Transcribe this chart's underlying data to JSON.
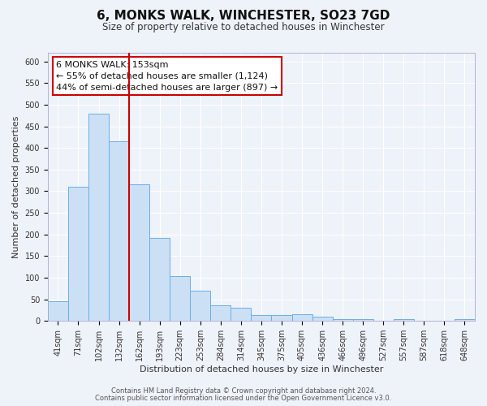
{
  "title": "6, MONKS WALK, WINCHESTER, SO23 7GD",
  "subtitle": "Size of property relative to detached houses in Winchester",
  "xlabel": "Distribution of detached houses by size in Winchester",
  "ylabel": "Number of detached properties",
  "bar_labels": [
    "41sqm",
    "71sqm",
    "102sqm",
    "132sqm",
    "162sqm",
    "193sqm",
    "223sqm",
    "253sqm",
    "284sqm",
    "314sqm",
    "345sqm",
    "375sqm",
    "405sqm",
    "436sqm",
    "466sqm",
    "496sqm",
    "527sqm",
    "557sqm",
    "587sqm",
    "618sqm",
    "648sqm"
  ],
  "bar_values": [
    46,
    311,
    480,
    415,
    315,
    192,
    104,
    69,
    37,
    30,
    13,
    13,
    15,
    10,
    5,
    5,
    0,
    5,
    1,
    1,
    5
  ],
  "bar_color": "#cce0f5",
  "bar_edge_color": "#6aaee8",
  "vline_color": "#cc0000",
  "ylim": [
    0,
    620
  ],
  "yticks": [
    0,
    50,
    100,
    150,
    200,
    250,
    300,
    350,
    400,
    450,
    500,
    550,
    600
  ],
  "annotation_title": "6 MONKS WALK: 153sqm",
  "annotation_line1": "← 55% of detached houses are smaller (1,124)",
  "annotation_line2": "44% of semi-detached houses are larger (897) →",
  "annotation_box_color": "#ffffff",
  "annotation_box_edge": "#cc0000",
  "footer_line1": "Contains HM Land Registry data © Crown copyright and database right 2024.",
  "footer_line2": "Contains public sector information licensed under the Open Government Licence v3.0.",
  "background_color": "#eef2f9",
  "grid_color": "#ffffff",
  "title_fontsize": 11,
  "subtitle_fontsize": 8.5,
  "axis_label_fontsize": 8,
  "tick_fontsize": 7,
  "annotation_fontsize": 8,
  "footer_fontsize": 6
}
